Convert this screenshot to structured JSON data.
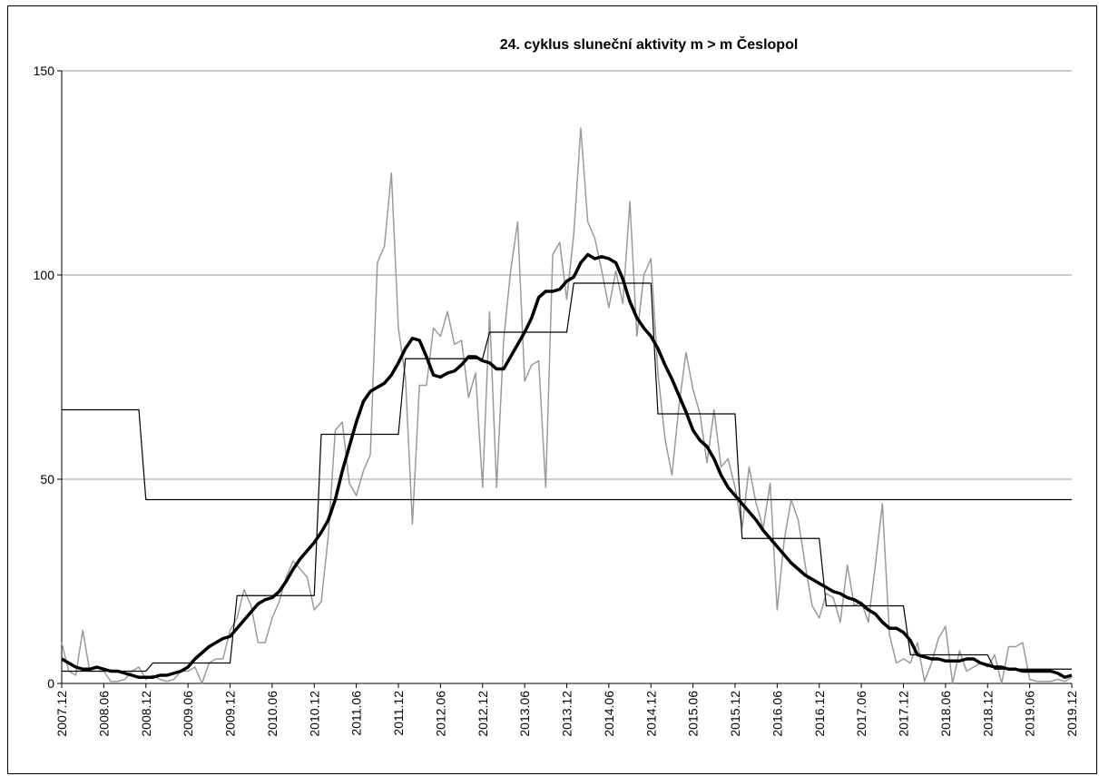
{
  "chart_data": {
    "type": "line",
    "title": "24. cyklus sluneční aktivity m > m Česlopol",
    "categories": [
      "2007.12",
      null,
      null,
      null,
      null,
      null,
      "2008.06",
      null,
      null,
      null,
      null,
      null,
      "2008.12",
      null,
      null,
      null,
      null,
      null,
      "2009.06",
      null,
      null,
      null,
      null,
      null,
      "2009.12",
      null,
      null,
      null,
      null,
      null,
      "2010.06",
      null,
      null,
      null,
      null,
      null,
      "2010.12",
      null,
      null,
      null,
      null,
      null,
      "2011.06",
      null,
      null,
      null,
      null,
      null,
      "2011.12",
      null,
      null,
      null,
      null,
      null,
      "2012.06",
      null,
      null,
      null,
      null,
      null,
      "2012.12",
      null,
      null,
      null,
      null,
      null,
      "2013.06",
      null,
      null,
      null,
      null,
      null,
      "2013.12",
      null,
      null,
      null,
      null,
      null,
      "2014.06",
      null,
      null,
      null,
      null,
      null,
      "2014.12",
      null,
      null,
      null,
      null,
      null,
      "2015.06",
      null,
      null,
      null,
      null,
      null,
      "2015.12",
      null,
      null,
      null,
      null,
      null,
      "2016.06",
      null,
      null,
      null,
      null,
      null,
      "2016.12",
      null,
      null,
      null,
      null,
      null,
      "2017.06",
      null,
      null,
      null,
      null,
      null,
      "2017.12",
      null,
      null,
      null,
      null,
      null,
      "2018.06",
      null,
      null,
      null,
      null,
      null,
      "2018.12",
      null,
      null,
      null,
      null,
      null,
      "2019.06",
      null,
      null,
      null,
      null,
      null,
      "2019.12"
    ],
    "series": [
      {
        "color": "#9a9a9a",
        "width": 1.5,
        "values": [
          10,
          3,
          2,
          13,
          3,
          3,
          3,
          0.5,
          0.5,
          1,
          3,
          4,
          1,
          2,
          1,
          0.5,
          1,
          3,
          3,
          4,
          0,
          5,
          6,
          6,
          13,
          16,
          23,
          19,
          10,
          10,
          16,
          20,
          26,
          30,
          28,
          26,
          18,
          20,
          36,
          62,
          64,
          49,
          46,
          52,
          56,
          103,
          107,
          125,
          87,
          75,
          39,
          73,
          73,
          87,
          85,
          91,
          83,
          84,
          70,
          76,
          48,
          91,
          48,
          84,
          101,
          113,
          74,
          78,
          79,
          48,
          105,
          108,
          94,
          110,
          136,
          113,
          109,
          101,
          92,
          101,
          93,
          118,
          85,
          100,
          104,
          76,
          60,
          51,
          68,
          81,
          72,
          66,
          54,
          67,
          53,
          55,
          48,
          38,
          53,
          44,
          38,
          49,
          18,
          35,
          45,
          40,
          29,
          19,
          16,
          22,
          21,
          15,
          29,
          19,
          20,
          15,
          29,
          44,
          12,
          5,
          6,
          5,
          10,
          0.5,
          5,
          11,
          14,
          0,
          8,
          3,
          4,
          5,
          4,
          7,
          0,
          9,
          9,
          10,
          1,
          0.5,
          0.5,
          0.5,
          1,
          0.5,
          1.5
        ]
      },
      {
        "color": "#000000",
        "width": 1.2,
        "values": [
          67,
          67,
          67,
          67,
          67,
          67,
          67,
          67,
          67,
          67,
          67,
          67,
          45,
          45,
          45,
          45,
          45,
          45,
          45,
          45,
          45,
          45,
          45,
          45,
          45,
          45,
          45,
          45,
          45,
          45,
          45,
          45,
          45,
          45,
          45,
          45,
          45,
          45,
          45,
          45,
          45,
          45,
          45,
          45,
          45,
          45,
          45,
          45,
          45,
          45,
          45,
          45,
          45,
          45,
          45,
          45,
          45,
          45,
          45,
          45,
          45,
          45,
          45,
          45,
          45,
          45,
          45,
          45,
          45,
          45,
          45,
          45,
          45,
          45,
          45,
          45,
          45,
          45,
          45,
          45,
          45,
          45,
          45,
          45,
          45,
          45,
          45,
          45,
          45,
          45,
          45,
          45,
          45,
          45,
          45,
          45,
          45,
          45,
          45,
          45,
          45,
          45,
          45,
          45,
          45,
          45,
          45,
          45,
          45,
          45,
          45,
          45,
          45,
          45,
          45,
          45,
          45,
          45,
          45,
          45,
          45,
          45,
          45,
          45,
          45,
          45,
          45,
          45,
          45,
          45,
          45,
          45,
          45,
          45,
          45,
          45,
          45,
          45,
          45,
          45,
          45,
          45,
          45,
          45,
          45
        ]
      },
      {
        "color": "#000000",
        "width": 1.2,
        "values": [
          3,
          3,
          3,
          3,
          3,
          3,
          3,
          3,
          3,
          3,
          3,
          3,
          3,
          5,
          5,
          5,
          5,
          5,
          5,
          5,
          5,
          5,
          5,
          5,
          5,
          21.5,
          21.5,
          21.5,
          21.5,
          21.5,
          21.5,
          21.5,
          21.5,
          21.5,
          21.5,
          21.5,
          21.5,
          61,
          61,
          61,
          61,
          61,
          61,
          61,
          61,
          61,
          61,
          61,
          61,
          79.5,
          79.5,
          79.5,
          79.5,
          79.5,
          79.5,
          79.5,
          79.5,
          79.5,
          79.5,
          79.5,
          79.5,
          86,
          86,
          86,
          86,
          86,
          86,
          86,
          86,
          86,
          86,
          86,
          86,
          98,
          98,
          98,
          98,
          98,
          98,
          98,
          98,
          98,
          98,
          98,
          98,
          66,
          66,
          66,
          66,
          66,
          66,
          66,
          66,
          66,
          66,
          66,
          66,
          35.5,
          35.5,
          35.5,
          35.5,
          35.5,
          35.5,
          35.5,
          35.5,
          35.5,
          35.5,
          35.5,
          35.5,
          19,
          19,
          19,
          19,
          19,
          19,
          19,
          19,
          19,
          19,
          19,
          19,
          7,
          7,
          7,
          7,
          7,
          7,
          7,
          7,
          7,
          7,
          7,
          7,
          3.5,
          3.5,
          3.5,
          3.5,
          3.5,
          3.5,
          3.5,
          3.5,
          3.5,
          3.5,
          3.5,
          3.5
        ]
      },
      {
        "color": "#000000",
        "width": 3.5,
        "values": [
          6,
          5,
          4,
          3.5,
          3.5,
          4,
          3.5,
          3,
          3,
          2.5,
          2,
          1.5,
          1.5,
          1.5,
          2,
          2,
          2.5,
          3,
          4,
          6,
          7.5,
          9,
          10,
          11,
          11.5,
          13.5,
          15.5,
          17.5,
          19.5,
          20.5,
          21,
          22.5,
          25,
          28,
          30.5,
          32.5,
          34.5,
          37,
          40,
          45,
          52,
          58,
          64,
          69,
          71.5,
          72.5,
          73.5,
          75.5,
          78.5,
          82,
          84.5,
          84,
          80,
          75.5,
          75,
          76,
          76.5,
          78,
          80,
          80,
          79,
          78.5,
          77,
          77,
          80,
          83,
          86,
          89.5,
          94.5,
          96,
          96,
          96.5,
          98.5,
          99.5,
          103,
          105,
          104,
          104.5,
          104,
          103,
          99,
          93.5,
          89.5,
          87,
          85,
          82,
          78,
          74.5,
          70.5,
          66.5,
          62,
          59.5,
          58,
          55,
          51,
          48,
          46,
          44,
          42,
          40,
          37.5,
          35.5,
          33.5,
          31.5,
          29.5,
          28,
          26.5,
          25.5,
          24.5,
          23.5,
          22.5,
          22,
          21,
          20.5,
          19.5,
          18,
          17,
          15,
          13.5,
          13.5,
          12.5,
          10.5,
          7,
          6.5,
          6,
          6,
          5.5,
          5.5,
          5.5,
          6,
          6,
          5,
          4.5,
          4,
          4,
          3.5,
          3.5,
          3,
          3,
          3,
          3,
          3,
          2.5,
          1.5,
          2
        ]
      }
    ],
    "ylim": [
      0,
      150
    ],
    "yticks": [
      0,
      50,
      100,
      150
    ],
    "grid": true
  }
}
